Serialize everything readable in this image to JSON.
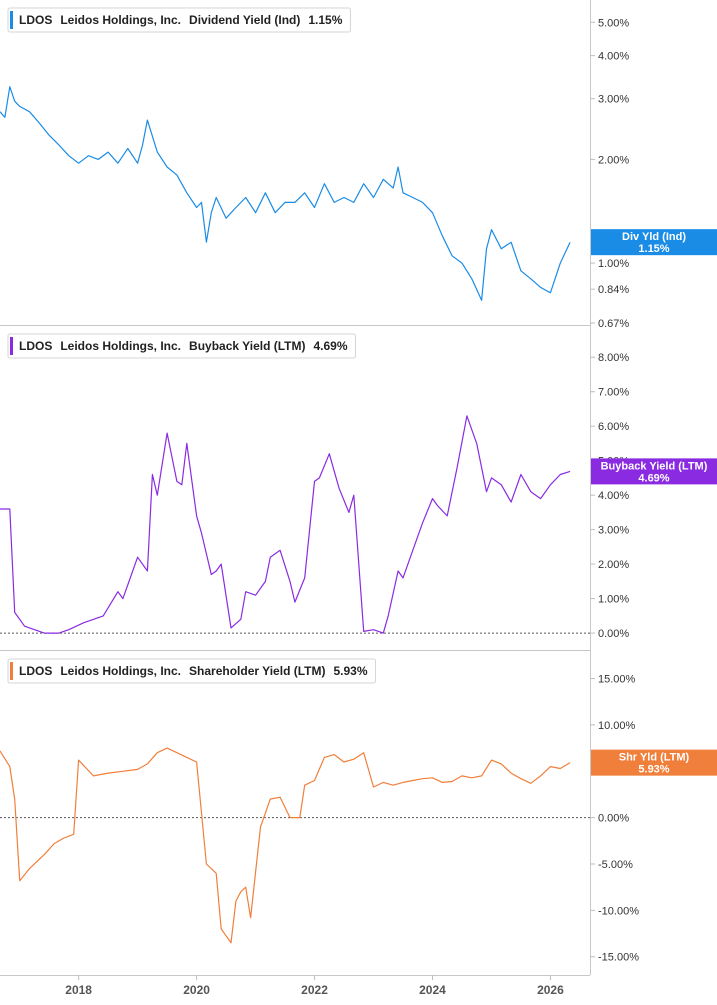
{
  "chart_data": [
    {
      "type": "line",
      "ticker": "LDOS",
      "company": "Leidos Holdings, Inc.",
      "metric": "Dividend Yield (Ind)",
      "current_value_label": "1.15%",
      "tag_label": "Div Yld (Ind)",
      "color": "#1a8ce6",
      "scale": "log",
      "ylim": [
        0.67,
        5.5
      ],
      "y_ticks": [
        {
          "v": 5.0,
          "label": "5.00%"
        },
        {
          "v": 4.0,
          "label": "4.00%"
        },
        {
          "v": 3.0,
          "label": "3.00%"
        },
        {
          "v": 2.0,
          "label": "2.00%"
        },
        {
          "v": 1.0,
          "label": "1.00%"
        },
        {
          "v": 0.84,
          "label": "0.84%"
        },
        {
          "v": 0.67,
          "label": "0.67%"
        }
      ],
      "series": [
        {
          "x": [
            "2016-09",
            "2016-10",
            "2016-11",
            "2016-12",
            "2017-01",
            "2017-03",
            "2017-05",
            "2017-07",
            "2017-09",
            "2017-11",
            "2018-01",
            "2018-03",
            "2018-05",
            "2018-07",
            "2018-09",
            "2018-11",
            "2019-01",
            "2019-02",
            "2019-03",
            "2019-05",
            "2019-07",
            "2019-09",
            "2019-11",
            "2020-01",
            "2020-02",
            "2020-03",
            "2020-04",
            "2020-05",
            "2020-07",
            "2020-09",
            "2020-11",
            "2021-01",
            "2021-03",
            "2021-05",
            "2021-07",
            "2021-09",
            "2021-11",
            "2022-01",
            "2022-03",
            "2022-05",
            "2022-07",
            "2022-09",
            "2022-11",
            "2023-01",
            "2023-03",
            "2023-05",
            "2023-06",
            "2023-07",
            "2023-09",
            "2023-11",
            "2024-01",
            "2024-03",
            "2024-05",
            "2024-07",
            "2024-09",
            "2024-11",
            "2024-12",
            "2025-01",
            "2025-03",
            "2025-05",
            "2025-07",
            "2025-09",
            "2025-11",
            "2026-01",
            "2026-03",
            "2026-05"
          ],
          "values": [
            2.75,
            2.65,
            3.25,
            2.95,
            2.85,
            2.75,
            2.55,
            2.35,
            2.2,
            2.05,
            1.95,
            2.05,
            2.0,
            2.1,
            1.95,
            2.15,
            1.95,
            2.2,
            2.6,
            2.1,
            1.9,
            1.8,
            1.6,
            1.45,
            1.5,
            1.15,
            1.4,
            1.55,
            1.35,
            1.45,
            1.55,
            1.4,
            1.6,
            1.4,
            1.5,
            1.5,
            1.6,
            1.45,
            1.7,
            1.5,
            1.55,
            1.5,
            1.7,
            1.55,
            1.75,
            1.65,
            1.9,
            1.6,
            1.55,
            1.5,
            1.4,
            1.2,
            1.05,
            1.0,
            0.9,
            0.78,
            1.1,
            1.25,
            1.1,
            1.15,
            0.95,
            0.9,
            0.85,
            0.82,
            1.0,
            1.15
          ]
        }
      ]
    },
    {
      "type": "line",
      "ticker": "LDOS",
      "company": "Leidos Holdings, Inc.",
      "metric": "Buyback Yield (LTM)",
      "current_value_label": "4.69%",
      "tag_label": "Buyback Yield (LTM)",
      "color": "#8a2be2",
      "scale": "linear",
      "ylim": [
        -0.2,
        8.5
      ],
      "zero_line": true,
      "y_ticks": [
        {
          "v": 8,
          "label": "8.00%"
        },
        {
          "v": 7,
          "label": "7.00%"
        },
        {
          "v": 6,
          "label": "6.00%"
        },
        {
          "v": 5,
          "label": "5.00%"
        },
        {
          "v": 4,
          "label": "4.00%"
        },
        {
          "v": 3,
          "label": "3.00%"
        },
        {
          "v": 2,
          "label": "2.00%"
        },
        {
          "v": 1,
          "label": "1.00%"
        },
        {
          "v": 0,
          "label": "0.00%"
        }
      ],
      "series": [
        {
          "x": [
            "2016-09",
            "2016-11",
            "2016-12",
            "2017-02",
            "2017-06",
            "2017-09",
            "2017-11",
            "2018-02",
            "2018-06",
            "2018-09",
            "2018-10",
            "2019-01",
            "2019-03",
            "2019-04",
            "2019-05",
            "2019-07",
            "2019-09",
            "2019-10",
            "2019-11",
            "2020-01",
            "2020-02",
            "2020-04",
            "2020-05",
            "2020-06",
            "2020-08",
            "2020-10",
            "2020-11",
            "2021-01",
            "2021-03",
            "2021-04",
            "2021-06",
            "2021-08",
            "2021-09",
            "2021-11",
            "2022-01",
            "2022-02",
            "2022-04",
            "2022-06",
            "2022-08",
            "2022-09",
            "2022-11",
            "2023-01",
            "2023-03",
            "2023-04",
            "2023-06",
            "2023-07",
            "2023-09",
            "2023-11",
            "2024-01",
            "2024-02",
            "2024-04",
            "2024-06",
            "2024-08",
            "2024-10",
            "2024-12",
            "2025-01",
            "2025-03",
            "2025-05",
            "2025-07",
            "2025-09",
            "2025-11",
            "2026-01",
            "2026-03",
            "2026-05"
          ],
          "values": [
            3.6,
            3.6,
            0.6,
            0.2,
            0.0,
            0.0,
            0.1,
            0.3,
            0.5,
            1.2,
            1.0,
            2.2,
            1.8,
            4.6,
            4.0,
            5.8,
            4.4,
            4.3,
            5.5,
            3.4,
            2.9,
            1.7,
            1.8,
            2.0,
            0.15,
            0.4,
            1.2,
            1.1,
            1.5,
            2.2,
            2.4,
            1.5,
            0.9,
            1.6,
            4.4,
            4.5,
            5.2,
            4.2,
            3.5,
            4.0,
            0.05,
            0.1,
            0.0,
            0.5,
            1.8,
            1.6,
            2.4,
            3.2,
            3.9,
            3.7,
            3.4,
            4.8,
            6.3,
            5.5,
            4.1,
            4.5,
            4.3,
            3.8,
            4.6,
            4.1,
            3.9,
            4.3,
            4.6,
            4.69
          ]
        }
      ]
    },
    {
      "type": "line",
      "ticker": "LDOS",
      "company": "Leidos Holdings, Inc.",
      "metric": "Shareholder Yield (LTM)",
      "current_value_label": "5.93%",
      "tag_label": "Shr Yld (LTM)",
      "color": "#f07f3c",
      "scale": "linear",
      "ylim": [
        -16,
        17
      ],
      "zero_line": true,
      "y_ticks": [
        {
          "v": 15,
          "label": "15.00%"
        },
        {
          "v": 10,
          "label": "10.00%"
        },
        {
          "v": 5,
          "label": "5.00%"
        },
        {
          "v": 0,
          "label": "0.00%"
        },
        {
          "v": -5,
          "label": "-5.00%"
        },
        {
          "v": -10,
          "label": "-10.00%"
        },
        {
          "v": -15,
          "label": "-15.00%"
        }
      ],
      "series": [
        {
          "x": [
            "2016-09",
            "2016-11",
            "2016-12",
            "2017-01",
            "2017-03",
            "2017-06",
            "2017-08",
            "2017-10",
            "2017-12",
            "2018-01",
            "2018-04",
            "2018-07",
            "2018-10",
            "2019-01",
            "2019-03",
            "2019-05",
            "2019-07",
            "2019-09",
            "2019-11",
            "2020-01",
            "2020-03",
            "2020-05",
            "2020-06",
            "2020-08",
            "2020-09",
            "2020-10",
            "2020-11",
            "2020-12",
            "2021-02",
            "2021-04",
            "2021-06",
            "2021-08",
            "2021-10",
            "2021-11",
            "2022-01",
            "2022-03",
            "2022-05",
            "2022-07",
            "2022-09",
            "2022-11",
            "2023-01",
            "2023-03",
            "2023-05",
            "2023-07",
            "2023-09",
            "2023-11",
            "2024-01",
            "2024-03",
            "2024-05",
            "2024-07",
            "2024-09",
            "2024-11",
            "2025-01",
            "2025-03",
            "2025-05",
            "2025-07",
            "2025-09",
            "2025-11",
            "2026-01",
            "2026-03",
            "2026-05"
          ],
          "values": [
            7.2,
            5.5,
            2.0,
            -6.8,
            -5.5,
            -4.0,
            -2.8,
            -2.2,
            -1.8,
            6.2,
            4.5,
            4.8,
            5.0,
            5.2,
            5.8,
            7.0,
            7.5,
            7.0,
            6.5,
            6.0,
            -5.0,
            -6.0,
            -12.0,
            -13.5,
            -9.0,
            -8.0,
            -7.5,
            -10.8,
            -1.0,
            2.0,
            2.2,
            0.0,
            0.0,
            3.5,
            4.0,
            6.5,
            6.8,
            6.0,
            6.3,
            7.0,
            3.3,
            3.8,
            3.5,
            3.8,
            4.0,
            4.2,
            4.3,
            3.8,
            3.9,
            4.5,
            4.3,
            4.5,
            6.2,
            5.8,
            4.8,
            4.2,
            3.7,
            4.5,
            5.5,
            5.3,
            5.93
          ]
        }
      ]
    }
  ],
  "x_axis": {
    "range": [
      "2016-09",
      "2026-06"
    ],
    "ticks": [
      {
        "date": "2018-01",
        "label": "2018"
      },
      {
        "date": "2020-01",
        "label": "2020"
      },
      {
        "date": "2022-01",
        "label": "2022"
      },
      {
        "date": "2024-01",
        "label": "2024"
      },
      {
        "date": "2026-01",
        "label": "2026"
      }
    ]
  }
}
